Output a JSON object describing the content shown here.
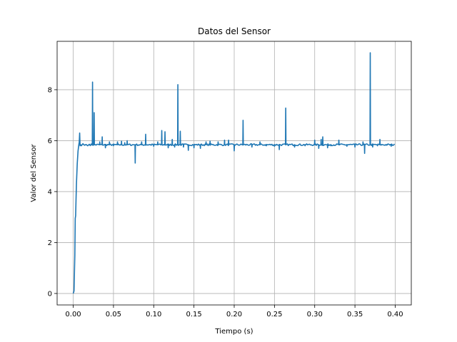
{
  "chart_data": {
    "type": "line",
    "title": "Datos del Sensor",
    "xlabel": "Tiempo (s)",
    "ylabel": "Valor del Sensor",
    "xlim": [
      -0.02,
      0.42
    ],
    "ylim": [
      -0.45,
      9.9
    ],
    "xticks": [
      0.0,
      0.05,
      0.1,
      0.15,
      0.2,
      0.25,
      0.3,
      0.35,
      0.4
    ],
    "xtick_labels": [
      "0.00",
      "0.05",
      "0.10",
      "0.15",
      "0.20",
      "0.25",
      "0.30",
      "0.35",
      "0.40"
    ],
    "yticks": [
      0,
      2,
      4,
      6,
      8
    ],
    "ytick_labels": [
      "0",
      "2",
      "4",
      "6",
      "8"
    ],
    "grid": true,
    "line_color": "#1f77b4",
    "series": [
      {
        "baseline": 5.84,
        "points": [
          [
            0.0,
            0.0
          ],
          [
            0.001,
            0.1
          ],
          [
            0.002,
            1.5
          ],
          [
            0.0025,
            2.95
          ],
          [
            0.003,
            3.05
          ],
          [
            0.0035,
            3.7
          ],
          [
            0.004,
            4.3
          ],
          [
            0.005,
            5.1
          ],
          [
            0.006,
            5.6
          ],
          [
            0.007,
            5.85
          ],
          [
            0.0075,
            5.95
          ],
          [
            0.008,
            6.3
          ],
          [
            0.0085,
            5.8
          ],
          [
            0.009,
            5.85
          ],
          [
            0.01,
            5.8
          ],
          [
            0.012,
            5.88
          ],
          [
            0.014,
            5.82
          ],
          [
            0.016,
            5.85
          ],
          [
            0.018,
            5.8
          ],
          [
            0.02,
            5.86
          ]
        ],
        "spikes": [
          [
            0.024,
            8.3
          ],
          [
            0.026,
            7.1
          ],
          [
            0.033,
            5.95
          ],
          [
            0.036,
            6.15
          ],
          [
            0.04,
            5.72
          ],
          [
            0.045,
            5.95
          ],
          [
            0.05,
            5.8
          ],
          [
            0.055,
            5.95
          ],
          [
            0.06,
            5.98
          ],
          [
            0.064,
            5.92
          ],
          [
            0.067,
            6.0
          ],
          [
            0.077,
            5.12
          ],
          [
            0.085,
            5.95
          ],
          [
            0.09,
            6.25
          ],
          [
            0.1,
            5.78
          ],
          [
            0.105,
            5.95
          ],
          [
            0.11,
            6.4
          ],
          [
            0.114,
            6.35
          ],
          [
            0.118,
            5.72
          ],
          [
            0.123,
            6.05
          ],
          [
            0.126,
            5.75
          ],
          [
            0.13,
            8.2
          ],
          [
            0.133,
            6.37
          ],
          [
            0.137,
            5.75
          ],
          [
            0.143,
            5.62
          ],
          [
            0.15,
            5.72
          ],
          [
            0.158,
            5.7
          ],
          [
            0.165,
            5.95
          ],
          [
            0.17,
            5.98
          ],
          [
            0.18,
            5.95
          ],
          [
            0.188,
            6.02
          ],
          [
            0.193,
            6.02
          ],
          [
            0.2,
            5.6
          ],
          [
            0.211,
            6.8
          ],
          [
            0.222,
            5.75
          ],
          [
            0.232,
            5.95
          ],
          [
            0.24,
            5.8
          ],
          [
            0.25,
            5.78
          ],
          [
            0.256,
            5.65
          ],
          [
            0.264,
            7.28
          ],
          [
            0.275,
            5.75
          ],
          [
            0.288,
            5.8
          ],
          [
            0.3,
            6.02
          ],
          [
            0.305,
            5.7
          ],
          [
            0.308,
            6.05
          ],
          [
            0.31,
            6.15
          ],
          [
            0.316,
            5.72
          ],
          [
            0.32,
            5.8
          ],
          [
            0.33,
            6.02
          ],
          [
            0.34,
            5.78
          ],
          [
            0.35,
            5.75
          ],
          [
            0.36,
            5.95
          ],
          [
            0.362,
            5.5
          ],
          [
            0.369,
            9.45
          ],
          [
            0.372,
            5.75
          ],
          [
            0.378,
            5.8
          ],
          [
            0.381,
            6.05
          ],
          [
            0.39,
            5.85
          ],
          [
            0.395,
            5.78
          ]
        ],
        "x_end": 0.4
      }
    ]
  }
}
